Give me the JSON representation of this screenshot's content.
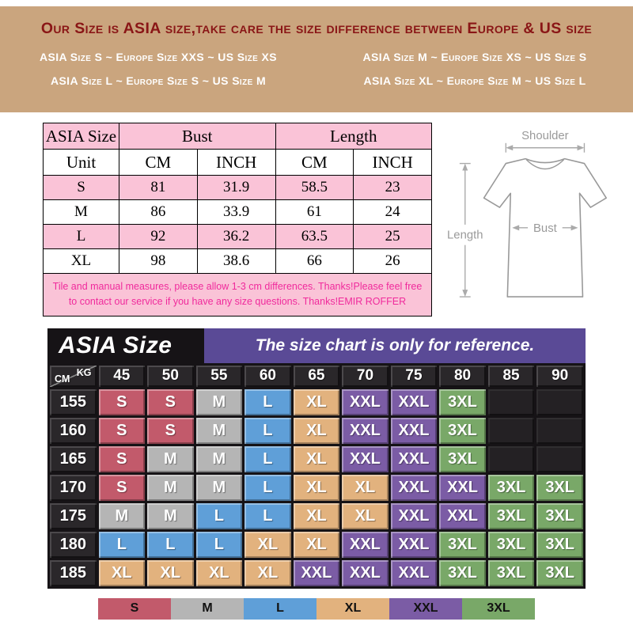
{
  "banner": {
    "title": "Our Size is ASIA size,take care the size difference between Europe & US size",
    "lines": [
      "ASIA Size S ~ Europe Size XXS ~ US Size XS",
      "ASIA Size M ~ Europe Size XS ~ US Size S",
      "ASIA Size L ~ Europe Size S ~ US Size M",
      "ASIA Size XL ~ Europe Size M ~ US Size L"
    ]
  },
  "measure_table": {
    "size_label": "ASIA Size",
    "bust_label": "Bust",
    "length_label": "Length",
    "unit_row": [
      "Unit",
      "CM",
      "INCH",
      "CM",
      "INCH"
    ],
    "rows": [
      [
        "S",
        "81",
        "31.9",
        "58.5",
        "23"
      ],
      [
        "M",
        "86",
        "33.9",
        "61",
        "24"
      ],
      [
        "L",
        "92",
        "36.2",
        "63.5",
        "25"
      ],
      [
        "XL",
        "98",
        "38.6",
        "66",
        "26"
      ]
    ],
    "note": "Tile and manual measures, please allow 1-3 cm differences. Thanks!Please feel free to contact our service if you have any size questions. Thanks!EMIR ROFFER"
  },
  "diagram": {
    "shoulder_label": "Shoulder",
    "bust_label": "Bust",
    "length_label": "Length"
  },
  "size_matrix": {
    "title": "ASIA Size",
    "subtitle": "The size chart is only for reference.",
    "unit_top": "KG",
    "unit_left": "CM",
    "weights": [
      "45",
      "50",
      "55",
      "60",
      "65",
      "70",
      "75",
      "80",
      "85",
      "90"
    ],
    "heights": [
      "155",
      "160",
      "165",
      "170",
      "175",
      "180",
      "185"
    ],
    "cells": [
      [
        "S",
        "S",
        "M",
        "L",
        "XL",
        "XXL",
        "XXL",
        "3XL",
        "",
        ""
      ],
      [
        "S",
        "S",
        "M",
        "L",
        "XL",
        "XXL",
        "XXL",
        "3XL",
        "",
        ""
      ],
      [
        "S",
        "M",
        "M",
        "L",
        "XL",
        "XXL",
        "XXL",
        "3XL",
        "",
        ""
      ],
      [
        "S",
        "M",
        "M",
        "L",
        "XL",
        "XL",
        "XXL",
        "XXL",
        "3XL",
        "3XL"
      ],
      [
        "M",
        "M",
        "L",
        "L",
        "XL",
        "XL",
        "XXL",
        "XXL",
        "3XL",
        "3XL"
      ],
      [
        "L",
        "L",
        "L",
        "XL",
        "XL",
        "XXL",
        "XXL",
        "3XL",
        "3XL",
        "3XL"
      ],
      [
        "XL",
        "XL",
        "XL",
        "XL",
        "XXL",
        "XXL",
        "XXL",
        "3XL",
        "3XL",
        "3XL"
      ]
    ],
    "legend": [
      "S",
      "M",
      "L",
      "XL",
      "XXL",
      "3XL"
    ]
  },
  "colors": {
    "banner_bg": "#caa57e",
    "banner_title": "#8a1616",
    "table_pink": "#fac3d7",
    "note_magenta": "#f02a9c",
    "chart_black": "#161316",
    "chart_dark": "#2a272a",
    "accent_purple": "#5a4a96",
    "S": "#c25a6b",
    "M": "#b5b5b5",
    "L": "#5f9fd8",
    "XL": "#e2b27e",
    "XXL": "#7b5ca5",
    "3XL": "#79a868"
  },
  "chart_data": [
    {
      "type": "table",
      "title": "ASIA Size measurements (Bust / Length)",
      "columns": [
        "ASIA Size",
        "Bust CM",
        "Bust INCH",
        "Length CM",
        "Length INCH"
      ],
      "rows": [
        [
          "S",
          81,
          31.9,
          58.5,
          23
        ],
        [
          "M",
          86,
          33.9,
          61,
          24
        ],
        [
          "L",
          92,
          36.2,
          63.5,
          25
        ],
        [
          "XL",
          98,
          38.6,
          66,
          26
        ]
      ]
    },
    {
      "type": "heatmap",
      "title": "The size chart is only for reference.",
      "xlabel": "KG (weight)",
      "ylabel": "CM (height)",
      "x": [
        45,
        50,
        55,
        60,
        65,
        70,
        75,
        80,
        85,
        90
      ],
      "y": [
        155,
        160,
        165,
        170,
        175,
        180,
        185
      ],
      "values": [
        [
          "S",
          "S",
          "M",
          "L",
          "XL",
          "XXL",
          "XXL",
          "3XL",
          "",
          ""
        ],
        [
          "S",
          "S",
          "M",
          "L",
          "XL",
          "XXL",
          "XXL",
          "3XL",
          "",
          ""
        ],
        [
          "S",
          "M",
          "M",
          "L",
          "XL",
          "XXL",
          "XXL",
          "3XL",
          "",
          ""
        ],
        [
          "S",
          "M",
          "M",
          "L",
          "XL",
          "XL",
          "XXL",
          "XXL",
          "3XL",
          "3XL"
        ],
        [
          "M",
          "M",
          "L",
          "L",
          "XL",
          "XL",
          "XXL",
          "XXL",
          "3XL",
          "3XL"
        ],
        [
          "L",
          "L",
          "L",
          "XL",
          "XL",
          "XXL",
          "XXL",
          "3XL",
          "3XL",
          "3XL"
        ],
        [
          "XL",
          "XL",
          "XL",
          "XL",
          "XXL",
          "XXL",
          "XXL",
          "3XL",
          "3XL",
          "3XL"
        ]
      ],
      "legend": [
        "S",
        "M",
        "L",
        "XL",
        "XXL",
        "3XL"
      ],
      "legend_position": "bottom"
    }
  ]
}
